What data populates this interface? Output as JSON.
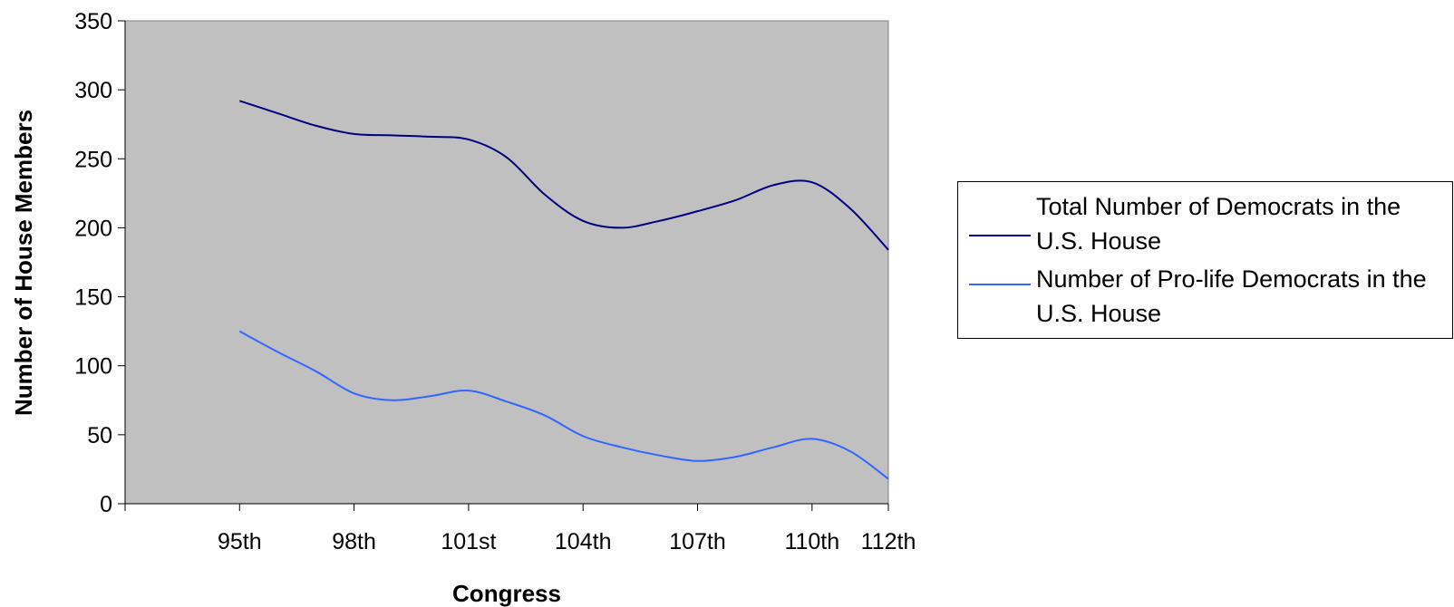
{
  "chart_data": {
    "type": "line",
    "xlabel": "Congress",
    "ylabel": "Number of House Members",
    "ylim": [
      0,
      350
    ],
    "yticks": [
      0,
      50,
      100,
      150,
      200,
      250,
      300,
      350
    ],
    "x_tick_labels": [
      "95th",
      "98th",
      "101st",
      "104th",
      "107th",
      "110th",
      "112th"
    ],
    "x_tick_positions": [
      95,
      98,
      101,
      104,
      107,
      110,
      112
    ],
    "xlim": [
      92,
      112
    ],
    "plot_background": "#C0C0C0",
    "grid": false,
    "legend_position": "right",
    "series": [
      {
        "name": "Total Number of Democrats in the U.S. House",
        "color": "#000080",
        "x": [
          95,
          96,
          97,
          98,
          99,
          100,
          101,
          102,
          103,
          104,
          105,
          106,
          107,
          108,
          109,
          110,
          111,
          112
        ],
        "values": [
          292,
          283,
          274,
          268,
          267,
          266,
          264,
          251,
          224,
          205,
          200,
          205,
          212,
          220,
          231,
          233,
          214,
          184
        ]
      },
      {
        "name": "Number of Pro-life Democrats in the U.S. House",
        "color": "#3366FF",
        "x": [
          95,
          96,
          97,
          98,
          99,
          100,
          101,
          102,
          103,
          104,
          105,
          106,
          107,
          108,
          109,
          110,
          111,
          112
        ],
        "values": [
          125,
          110,
          96,
          80,
          75,
          78,
          82,
          74,
          64,
          49,
          41,
          35,
          31,
          34,
          41,
          47,
          38,
          18
        ]
      }
    ]
  }
}
